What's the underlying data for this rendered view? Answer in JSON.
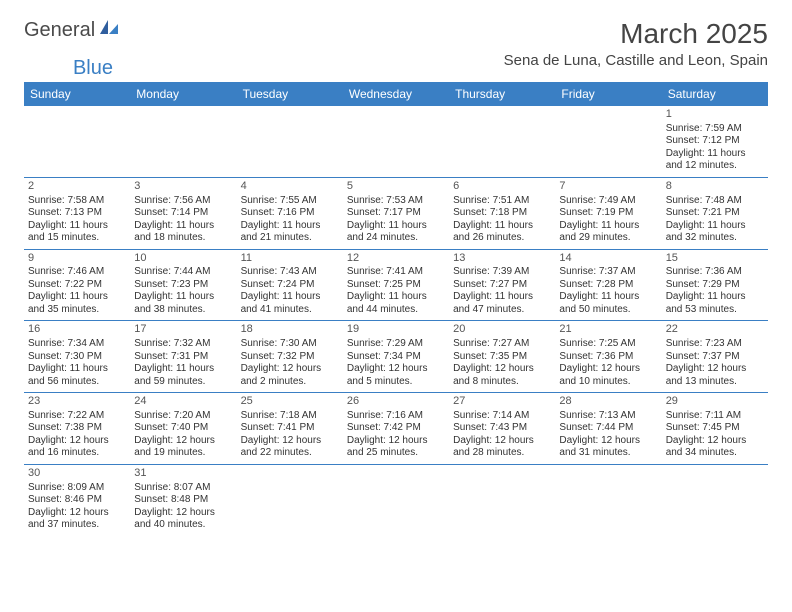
{
  "logo": {
    "word1": "General",
    "word2": "Blue"
  },
  "title": "March 2025",
  "location": "Sena de Luna, Castille and Leon, Spain",
  "colors": {
    "header_bg": "#3a7fc4",
    "header_text": "#ffffff",
    "cell_border": "#3a7fc4",
    "text": "#333333",
    "logo_gray": "#4a4a4a",
    "logo_blue": "#3a7fc4",
    "background": "#ffffff"
  },
  "day_names": [
    "Sunday",
    "Monday",
    "Tuesday",
    "Wednesday",
    "Thursday",
    "Friday",
    "Saturday"
  ],
  "weeks": [
    [
      null,
      null,
      null,
      null,
      null,
      null,
      {
        "n": "1",
        "sr": "Sunrise: 7:59 AM",
        "ss": "Sunset: 7:12 PM",
        "dl1": "Daylight: 11 hours",
        "dl2": "and 12 minutes."
      }
    ],
    [
      {
        "n": "2",
        "sr": "Sunrise: 7:58 AM",
        "ss": "Sunset: 7:13 PM",
        "dl1": "Daylight: 11 hours",
        "dl2": "and 15 minutes."
      },
      {
        "n": "3",
        "sr": "Sunrise: 7:56 AM",
        "ss": "Sunset: 7:14 PM",
        "dl1": "Daylight: 11 hours",
        "dl2": "and 18 minutes."
      },
      {
        "n": "4",
        "sr": "Sunrise: 7:55 AM",
        "ss": "Sunset: 7:16 PM",
        "dl1": "Daylight: 11 hours",
        "dl2": "and 21 minutes."
      },
      {
        "n": "5",
        "sr": "Sunrise: 7:53 AM",
        "ss": "Sunset: 7:17 PM",
        "dl1": "Daylight: 11 hours",
        "dl2": "and 24 minutes."
      },
      {
        "n": "6",
        "sr": "Sunrise: 7:51 AM",
        "ss": "Sunset: 7:18 PM",
        "dl1": "Daylight: 11 hours",
        "dl2": "and 26 minutes."
      },
      {
        "n": "7",
        "sr": "Sunrise: 7:49 AM",
        "ss": "Sunset: 7:19 PM",
        "dl1": "Daylight: 11 hours",
        "dl2": "and 29 minutes."
      },
      {
        "n": "8",
        "sr": "Sunrise: 7:48 AM",
        "ss": "Sunset: 7:21 PM",
        "dl1": "Daylight: 11 hours",
        "dl2": "and 32 minutes."
      }
    ],
    [
      {
        "n": "9",
        "sr": "Sunrise: 7:46 AM",
        "ss": "Sunset: 7:22 PM",
        "dl1": "Daylight: 11 hours",
        "dl2": "and 35 minutes."
      },
      {
        "n": "10",
        "sr": "Sunrise: 7:44 AM",
        "ss": "Sunset: 7:23 PM",
        "dl1": "Daylight: 11 hours",
        "dl2": "and 38 minutes."
      },
      {
        "n": "11",
        "sr": "Sunrise: 7:43 AM",
        "ss": "Sunset: 7:24 PM",
        "dl1": "Daylight: 11 hours",
        "dl2": "and 41 minutes."
      },
      {
        "n": "12",
        "sr": "Sunrise: 7:41 AM",
        "ss": "Sunset: 7:25 PM",
        "dl1": "Daylight: 11 hours",
        "dl2": "and 44 minutes."
      },
      {
        "n": "13",
        "sr": "Sunrise: 7:39 AM",
        "ss": "Sunset: 7:27 PM",
        "dl1": "Daylight: 11 hours",
        "dl2": "and 47 minutes."
      },
      {
        "n": "14",
        "sr": "Sunrise: 7:37 AM",
        "ss": "Sunset: 7:28 PM",
        "dl1": "Daylight: 11 hours",
        "dl2": "and 50 minutes."
      },
      {
        "n": "15",
        "sr": "Sunrise: 7:36 AM",
        "ss": "Sunset: 7:29 PM",
        "dl1": "Daylight: 11 hours",
        "dl2": "and 53 minutes."
      }
    ],
    [
      {
        "n": "16",
        "sr": "Sunrise: 7:34 AM",
        "ss": "Sunset: 7:30 PM",
        "dl1": "Daylight: 11 hours",
        "dl2": "and 56 minutes."
      },
      {
        "n": "17",
        "sr": "Sunrise: 7:32 AM",
        "ss": "Sunset: 7:31 PM",
        "dl1": "Daylight: 11 hours",
        "dl2": "and 59 minutes."
      },
      {
        "n": "18",
        "sr": "Sunrise: 7:30 AM",
        "ss": "Sunset: 7:32 PM",
        "dl1": "Daylight: 12 hours",
        "dl2": "and 2 minutes."
      },
      {
        "n": "19",
        "sr": "Sunrise: 7:29 AM",
        "ss": "Sunset: 7:34 PM",
        "dl1": "Daylight: 12 hours",
        "dl2": "and 5 minutes."
      },
      {
        "n": "20",
        "sr": "Sunrise: 7:27 AM",
        "ss": "Sunset: 7:35 PM",
        "dl1": "Daylight: 12 hours",
        "dl2": "and 8 minutes."
      },
      {
        "n": "21",
        "sr": "Sunrise: 7:25 AM",
        "ss": "Sunset: 7:36 PM",
        "dl1": "Daylight: 12 hours",
        "dl2": "and 10 minutes."
      },
      {
        "n": "22",
        "sr": "Sunrise: 7:23 AM",
        "ss": "Sunset: 7:37 PM",
        "dl1": "Daylight: 12 hours",
        "dl2": "and 13 minutes."
      }
    ],
    [
      {
        "n": "23",
        "sr": "Sunrise: 7:22 AM",
        "ss": "Sunset: 7:38 PM",
        "dl1": "Daylight: 12 hours",
        "dl2": "and 16 minutes."
      },
      {
        "n": "24",
        "sr": "Sunrise: 7:20 AM",
        "ss": "Sunset: 7:40 PM",
        "dl1": "Daylight: 12 hours",
        "dl2": "and 19 minutes."
      },
      {
        "n": "25",
        "sr": "Sunrise: 7:18 AM",
        "ss": "Sunset: 7:41 PM",
        "dl1": "Daylight: 12 hours",
        "dl2": "and 22 minutes."
      },
      {
        "n": "26",
        "sr": "Sunrise: 7:16 AM",
        "ss": "Sunset: 7:42 PM",
        "dl1": "Daylight: 12 hours",
        "dl2": "and 25 minutes."
      },
      {
        "n": "27",
        "sr": "Sunrise: 7:14 AM",
        "ss": "Sunset: 7:43 PM",
        "dl1": "Daylight: 12 hours",
        "dl2": "and 28 minutes."
      },
      {
        "n": "28",
        "sr": "Sunrise: 7:13 AM",
        "ss": "Sunset: 7:44 PM",
        "dl1": "Daylight: 12 hours",
        "dl2": "and 31 minutes."
      },
      {
        "n": "29",
        "sr": "Sunrise: 7:11 AM",
        "ss": "Sunset: 7:45 PM",
        "dl1": "Daylight: 12 hours",
        "dl2": "and 34 minutes."
      }
    ],
    [
      {
        "n": "30",
        "sr": "Sunrise: 8:09 AM",
        "ss": "Sunset: 8:46 PM",
        "dl1": "Daylight: 12 hours",
        "dl2": "and 37 minutes."
      },
      {
        "n": "31",
        "sr": "Sunrise: 8:07 AM",
        "ss": "Sunset: 8:48 PM",
        "dl1": "Daylight: 12 hours",
        "dl2": "and 40 minutes."
      },
      null,
      null,
      null,
      null,
      null
    ]
  ]
}
